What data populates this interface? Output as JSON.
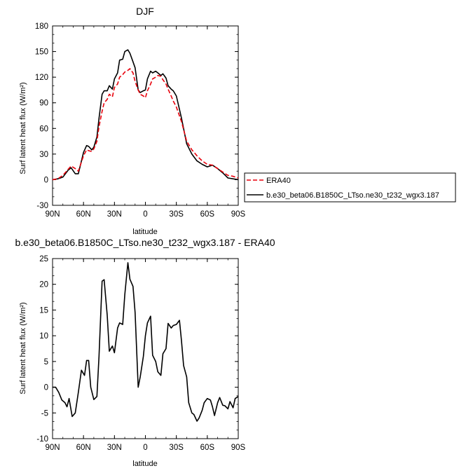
{
  "chart_data": [
    {
      "type": "line",
      "title": "DJF",
      "xlabel": "latitude",
      "ylabel": "Surf latent heat flux (W/m2)",
      "xlim": [
        90,
        -90
      ],
      "ylim": [
        -30,
        180
      ],
      "yticks": [
        -30,
        0,
        30,
        60,
        90,
        120,
        150,
        180
      ],
      "xticks": [
        90,
        60,
        30,
        0,
        -30,
        -60,
        -90
      ],
      "xtick_labels": [
        "90N",
        "60N",
        "30N",
        "0",
        "30S",
        "60S",
        "90S"
      ],
      "legend_position": "right",
      "series": [
        {
          "name": "ERA40",
          "color": "#e8000b",
          "dash": "dashed",
          "x": [
            90,
            85,
            80,
            75,
            72,
            68,
            65,
            60,
            57,
            55,
            52,
            50,
            47,
            45,
            42,
            40,
            37,
            35,
            32,
            30,
            27,
            25,
            22,
            20,
            17,
            15,
            12,
            10,
            7,
            5,
            2,
            0,
            -2,
            -5,
            -7,
            -10,
            -12,
            -15,
            -17,
            -20,
            -22,
            -25,
            -27,
            -30,
            -35,
            -40,
            -45,
            -50,
            -55,
            -60,
            -65,
            -70,
            -75,
            -80,
            -85,
            -90
          ],
          "y": [
            0,
            1,
            5,
            12,
            16,
            13,
            10,
            28,
            35,
            34,
            33,
            36,
            45,
            62,
            80,
            90,
            94,
            100,
            97,
            108,
            112,
            120,
            123,
            126,
            128,
            130,
            125,
            115,
            105,
            100,
            98,
            96,
            104,
            112,
            118,
            120,
            122,
            121,
            117,
            112,
            106,
            98,
            92,
            85,
            68,
            45,
            35,
            28,
            22,
            18,
            17,
            13,
            9,
            5,
            4,
            2
          ]
        },
        {
          "name": "b.e30_beta06.B1850C_LTso.ne30_t232_wgx3.187",
          "color": "#000000",
          "dash": "solid",
          "x": [
            90,
            85,
            80,
            75,
            72,
            68,
            65,
            60,
            57,
            55,
            52,
            50,
            47,
            45,
            42,
            40,
            37,
            35,
            32,
            30,
            27,
            25,
            22,
            20,
            17,
            15,
            12,
            10,
            7,
            5,
            2,
            0,
            -2,
            -5,
            -7,
            -10,
            -12,
            -15,
            -17,
            -20,
            -22,
            -25,
            -27,
            -30,
            -35,
            -40,
            -45,
            -50,
            -55,
            -60,
            -65,
            -70,
            -75,
            -80,
            -85,
            -90
          ],
          "y": [
            0,
            1,
            3,
            11,
            14,
            7,
            7,
            32,
            40,
            39,
            35,
            38,
            50,
            72,
            100,
            104,
            104,
            110,
            106,
            118,
            125,
            140,
            141,
            150,
            152,
            148,
            138,
            131,
            105,
            102,
            104,
            105,
            118,
            127,
            125,
            127,
            125,
            122,
            124,
            119,
            110,
            106,
            104,
            98,
            72,
            42,
            30,
            22,
            18,
            15,
            17,
            13,
            8,
            2,
            1,
            0
          ]
        }
      ]
    },
    {
      "type": "line",
      "title": "b.e30_beta06.B1850C_LTso.ne30_t232_wgx3.187 - ERA40",
      "xlabel": "latitude",
      "ylabel": "Surf latent heat flux (W/m2)",
      "xlim": [
        90,
        -90
      ],
      "ylim": [
        -10,
        25
      ],
      "yticks": [
        -10,
        -5,
        0,
        5,
        10,
        15,
        20,
        25
      ],
      "xticks": [
        90,
        60,
        30,
        0,
        -30,
        -60,
        -90
      ],
      "xtick_labels": [
        "90N",
        "60N",
        "30N",
        "0",
        "30S",
        "60S",
        "90S"
      ],
      "series": [
        {
          "color": "#000000",
          "x": [
            90,
            87,
            84,
            81,
            78,
            76,
            74,
            71,
            68,
            65,
            62,
            59,
            57,
            55,
            53,
            50,
            47,
            45,
            42,
            40,
            37,
            35,
            32,
            30,
            27,
            25,
            22,
            20,
            17,
            15,
            12,
            10,
            7,
            5,
            2,
            0,
            -2,
            -5,
            -7,
            -10,
            -12,
            -15,
            -17,
            -20,
            -22,
            -25,
            -27,
            -30,
            -33,
            -35,
            -37,
            -40,
            -42,
            -45,
            -47,
            -50,
            -52,
            -55,
            -57,
            -60,
            -63,
            -65,
            -67,
            -70,
            -72,
            -75,
            -77,
            -80,
            -82,
            -85,
            -87,
            -90
          ],
          "y": [
            0,
            0,
            -1,
            -2.5,
            -3,
            -3.8,
            -2.2,
            -5.7,
            -5,
            -1,
            3.3,
            2.3,
            5.2,
            5.2,
            0,
            -2.4,
            -1.8,
            6,
            20.6,
            20.9,
            14,
            7,
            8,
            6.7,
            11.5,
            12.5,
            12.2,
            18,
            24.2,
            21,
            19.6,
            14.5,
            0,
            2,
            6,
            10,
            12.5,
            13.8,
            6.2,
            5,
            3,
            2.3,
            6.5,
            7.5,
            12.4,
            11.5,
            12,
            12.2,
            13,
            9,
            4.2,
            2,
            -3,
            -5,
            -5.3,
            -6.6,
            -6,
            -4.5,
            -3,
            -2.2,
            -2.5,
            -3.8,
            -5.5,
            -3,
            -2,
            -3.5,
            -3.6,
            -4.2,
            -2.8,
            -4,
            -2.2,
            -1.8
          ]
        }
      ]
    }
  ]
}
